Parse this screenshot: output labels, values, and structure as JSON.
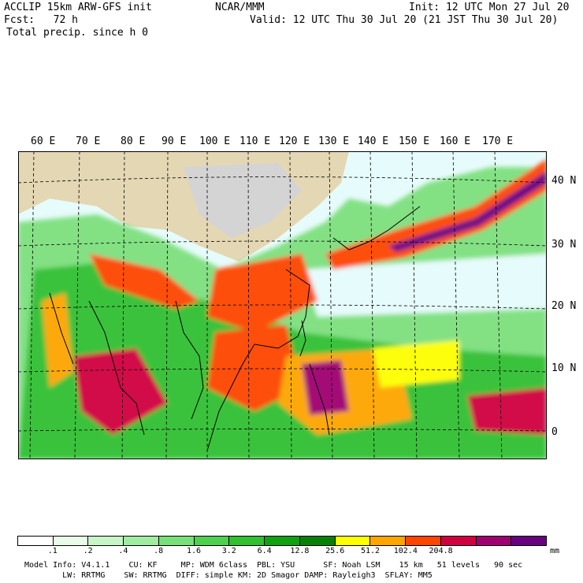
{
  "header": {
    "model": "ACCLIP 15km ARW-GFS init",
    "center": "NCAR/MMM",
    "init": "Init: 12 UTC Mon 27 Jul 20",
    "fcst": "Fcst:   72 h",
    "valid": "Valid: 12 UTC Thu 30 Jul 20 (21 JST Thu 30 Jul 20)",
    "field": "Total precip. since h 0"
  },
  "map": {
    "lon_labels": [
      "60 E",
      "70 E",
      "80 E",
      "90 E",
      "100 E",
      "110 E",
      "120 E",
      "130 E",
      "140 E",
      "150 E",
      "160 E",
      "170 E"
    ],
    "lat_labels": [
      "40 N",
      "30 N",
      "20 N",
      "10 N",
      "0"
    ]
  },
  "colorbar": {
    "ticks": [
      ".1",
      ".2",
      ".4",
      ".8",
      "1.6",
      "3.2",
      "6.4",
      "12.8",
      "25.6",
      "51.2",
      "102.4",
      "204.8"
    ],
    "unit": "mm",
    "colors": [
      "#ffffff",
      "#e8fbe8",
      "#c8f5c8",
      "#a0eca0",
      "#78e078",
      "#50d050",
      "#30c030",
      "#10a010",
      "#088008",
      "#ffff00",
      "#ffa500",
      "#ff4500",
      "#d00040",
      "#a00070",
      "#6a0080"
    ]
  },
  "footer": {
    "line1": "Model Info: V4.1.1    CU: KF     MP: WDM 6class  PBL: YSU      SF: Noah LSM    15 km   51 levels   90 sec",
    "line2": "        LW: RRTMG    SW: RRTMG  DIFF: simple KM: 2D Smagor DAMP: Rayleigh3  SFLAY: MM5"
  }
}
